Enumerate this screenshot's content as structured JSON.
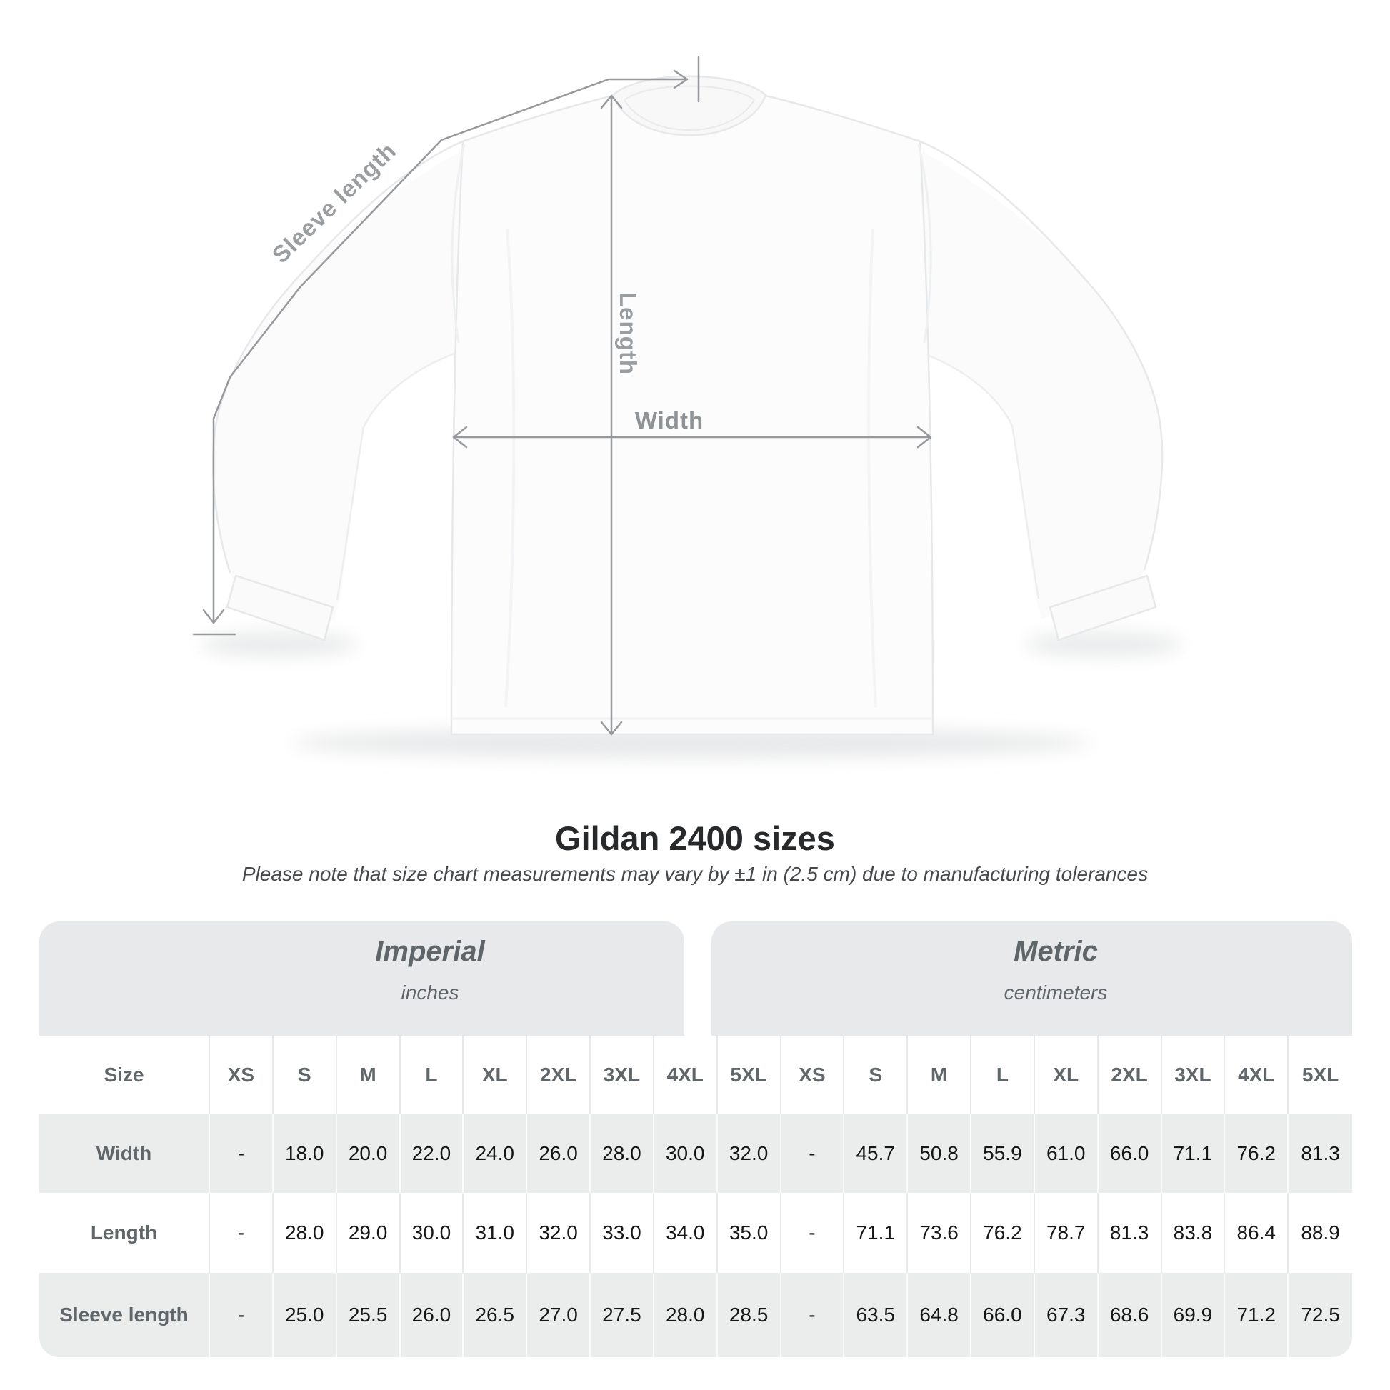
{
  "diagram": {
    "sleeve_length_label": "Sleeve length",
    "length_label": "Length",
    "width_label": "Width"
  },
  "title": "Gildan 2400 sizes",
  "subtitle": "Please note that size chart measurements may vary by ±1 in (2.5 cm) due to manufacturing tolerances",
  "table": {
    "groups": [
      {
        "name": "Imperial",
        "unit": "inches"
      },
      {
        "name": "Metric",
        "unit": "centimeters"
      }
    ],
    "size_header": "Size",
    "columns": [
      "XS",
      "S",
      "M",
      "L",
      "XL",
      "2XL",
      "3XL",
      "4XL",
      "5XL"
    ],
    "rows": [
      {
        "label": "Width",
        "imperial": [
          "-",
          "18.0",
          "20.0",
          "22.0",
          "24.0",
          "26.0",
          "28.0",
          "30.0",
          "32.0"
        ],
        "metric": [
          "-",
          "45.7",
          "50.8",
          "55.9",
          "61.0",
          "66.0",
          "71.1",
          "76.2",
          "81.3"
        ]
      },
      {
        "label": "Length",
        "imperial": [
          "-",
          "28.0",
          "29.0",
          "30.0",
          "31.0",
          "32.0",
          "33.0",
          "34.0",
          "35.0"
        ],
        "metric": [
          "-",
          "71.1",
          "73.6",
          "76.2",
          "78.7",
          "81.3",
          "83.8",
          "86.4",
          "88.9"
        ]
      },
      {
        "label": "Sleeve length",
        "imperial": [
          "-",
          "25.0",
          "25.5",
          "26.0",
          "26.5",
          "27.0",
          "27.5",
          "28.0",
          "28.5"
        ],
        "metric": [
          "-",
          "63.5",
          "64.8",
          "66.0",
          "67.3",
          "68.6",
          "69.9",
          "71.2",
          "72.5"
        ]
      }
    ]
  },
  "colors": {
    "band_background": "#e8e9ea",
    "stripe_background": "#ebecec",
    "header_text": "#60676a",
    "value_text": "#161616",
    "title_text": "#27292b",
    "dimension_annotation": "#97999c"
  }
}
